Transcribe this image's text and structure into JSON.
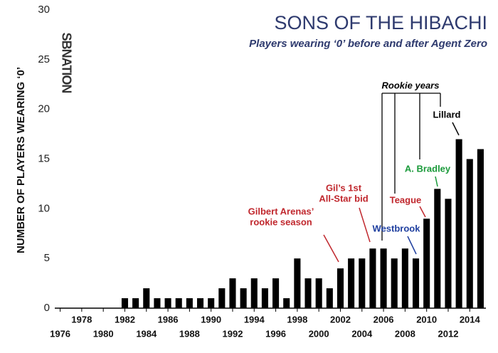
{
  "chart_data": {
    "type": "bar",
    "title": "SONS OF THE HIBACHI",
    "subtitle": "Players wearing ‘0’ before and after Agent Zero",
    "y_label": "NUMBER OF PLAYERS WEARING ‘0’",
    "logo": "SBNATION",
    "x": [
      1982,
      1983,
      1984,
      1985,
      1986,
      1987,
      1988,
      1989,
      1990,
      1991,
      1992,
      1993,
      1994,
      1995,
      1996,
      1997,
      1998,
      1999,
      2000,
      2001,
      2002,
      2003,
      2004,
      2005,
      2006,
      2007,
      2008,
      2009,
      2010,
      2011,
      2012,
      2013,
      2014,
      2015
    ],
    "values": [
      1,
      1,
      2,
      1,
      1,
      1,
      1,
      1,
      1,
      2,
      3,
      2,
      3,
      2,
      3,
      1,
      5,
      3,
      3,
      2,
      4,
      5,
      5,
      6,
      6,
      5,
      6,
      5,
      9,
      12,
      11,
      17,
      15,
      16
    ],
    "color": "#000000",
    "xlim": [
      1975.5,
      2015.5
    ],
    "xticks": [
      1976,
      1978,
      1980,
      1982,
      1984,
      1986,
      1988,
      1990,
      1992,
      1994,
      1996,
      1998,
      2000,
      2002,
      2004,
      2006,
      2008,
      2010,
      2012,
      2014
    ],
    "ylim": [
      0,
      30
    ],
    "yticks": [
      0,
      5,
      10,
      15,
      20,
      25,
      30
    ],
    "grid": false,
    "annotations": [
      {
        "text": [
          "Gilbert Arenas’",
          "rookie season"
        ],
        "color": "#c0272d"
      },
      {
        "text": [
          "Gil’s 1st",
          "All-Star bid"
        ],
        "color": "#c0272d"
      },
      {
        "text": [
          "Westbrook"
        ],
        "color": "#1f3f9f"
      },
      {
        "text": [
          "Teague"
        ],
        "color": "#c0272d"
      },
      {
        "text": [
          "A. Bradley"
        ],
        "color": "#1a9a3a"
      },
      {
        "text": [
          "Lillard"
        ],
        "color": "#000000"
      },
      {
        "text": [
          "Rookie years"
        ],
        "color": "#000000"
      }
    ]
  }
}
